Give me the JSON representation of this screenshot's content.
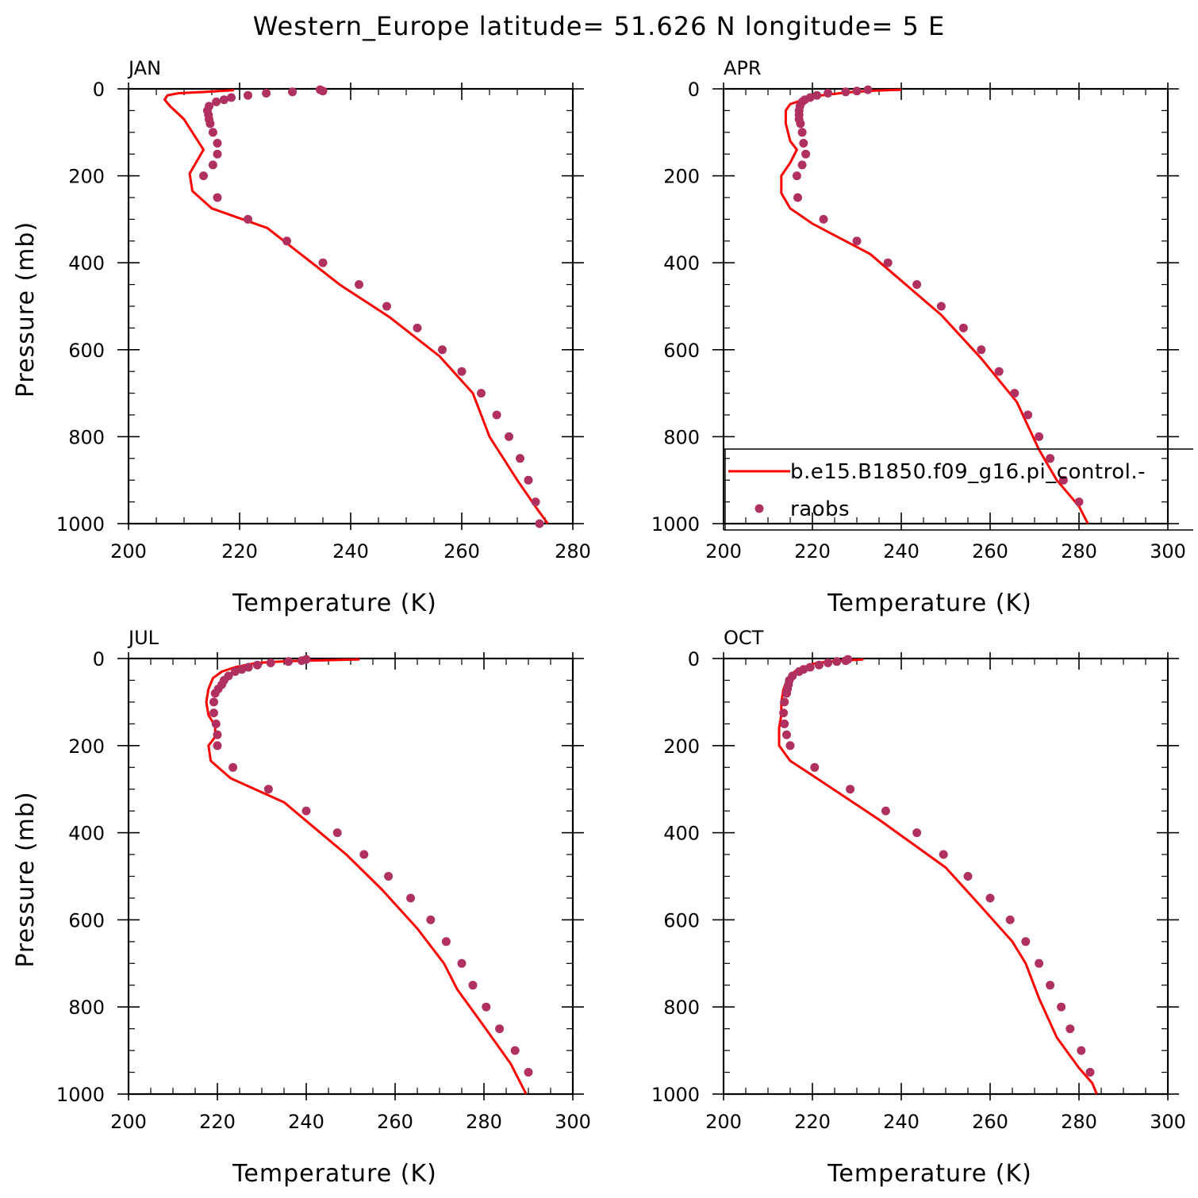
{
  "title": "Western_Europe  latitude= 51.626 N longitude= 5 E",
  "legend": {
    "model_label": "b.e15.B1850.f09_g16.pi_control.-",
    "obs_label": "raobs",
    "placement": "over APR panel, lower-right"
  },
  "colors": {
    "model_line": "#ff0000",
    "obs_points": "#b03060",
    "frame": "#000000",
    "background": "#ffffff"
  },
  "chart_data": [
    {
      "type": "line",
      "panel_label": "JAN",
      "xlabel": "Temperature (K)",
      "ylabel": "Pressure (mb)",
      "xlim": [
        200,
        280
      ],
      "ylim": [
        1000,
        0
      ],
      "xticks": [
        200,
        220,
        240,
        260,
        280
      ],
      "yticks": [
        0,
        200,
        400,
        600,
        800,
        1000
      ],
      "xtick_labels": [
        "200",
        "220",
        "240",
        "260",
        "280"
      ],
      "ytick_labels": [
        "0",
        "200",
        "400",
        "600",
        "800",
        "1000"
      ],
      "series": [
        {
          "name": "b.e15.B1850.f09_g16.pi_control.-",
          "kind": "line",
          "x": [
            219,
            214,
            209,
            207,
            206.5,
            207.5,
            210,
            213.5,
            211,
            211.5,
            215,
            225,
            238,
            247,
            256,
            262,
            265,
            270,
            273.5,
            275.5
          ],
          "y": [
            3,
            7,
            10,
            15,
            25,
            40,
            70,
            140,
            195,
            235,
            275,
            320,
            450,
            525,
            615,
            700,
            800,
            900,
            965,
            1000
          ]
        },
        {
          "name": "raobs",
          "kind": "points",
          "x": [
            234.5,
            235,
            229.5,
            224.8,
            221.5,
            218.5,
            217.2,
            215.8,
            214.5,
            214.2,
            214.4,
            214.5,
            214.7,
            215.2,
            216,
            216,
            215.2,
            213.5,
            216,
            221.5,
            228.5,
            235,
            241.5,
            246.5,
            252,
            256.5,
            260,
            263.5,
            266.3,
            268.5,
            270.5,
            272,
            273.3,
            274
          ],
          "y": [
            2,
            5,
            7,
            10,
            15,
            20,
            25,
            30,
            40,
            50,
            60,
            70,
            80,
            100,
            125,
            150,
            175,
            200,
            250,
            300,
            350,
            400,
            450,
            500,
            550,
            600,
            650,
            700,
            750,
            800,
            850,
            900,
            950,
            1000
          ]
        }
      ]
    },
    {
      "type": "line",
      "panel_label": "APR",
      "xlabel": "Temperature (K)",
      "ylabel": "",
      "xlim": [
        200,
        300
      ],
      "ylim": [
        1000,
        0
      ],
      "xticks": [
        200,
        220,
        240,
        260,
        280,
        300
      ],
      "yticks": [
        0,
        200,
        400,
        600,
        800,
        1000
      ],
      "xtick_labels": [
        "200",
        "220",
        "240",
        "260",
        "280",
        "300"
      ],
      "ytick_labels": [
        "0",
        "200",
        "400",
        "600",
        "800",
        "1000"
      ],
      "series": [
        {
          "name": "b.e15.B1850.f09_g16.pi_control.-",
          "kind": "line",
          "x": [
            240,
            234,
            228,
            222,
            218,
            215,
            214,
            214,
            215,
            216.5,
            215,
            213,
            213,
            215,
            220,
            233,
            249,
            258,
            266,
            271,
            275,
            280,
            282
          ],
          "y": [
            2,
            4,
            8,
            15,
            25,
            35,
            50,
            80,
            120,
            140,
            170,
            200,
            240,
            275,
            310,
            380,
            520,
            620,
            720,
            830,
            900,
            960,
            1000
          ]
        },
        {
          "name": "raobs",
          "kind": "points",
          "x": [
            232.5,
            230,
            227.5,
            223.5,
            221,
            219.5,
            218.3,
            217.7,
            217.2,
            217.0,
            217.0,
            217.0,
            217.3,
            217.7,
            218.0,
            218.5,
            217.7,
            216.5,
            216.7,
            222.5,
            230,
            237,
            243.5,
            249,
            254,
            258,
            262,
            265.5,
            268.5,
            271,
            273.5,
            276.5,
            280
          ],
          "y": [
            2,
            5,
            7,
            10,
            15,
            20,
            25,
            30,
            40,
            50,
            60,
            70,
            80,
            100,
            125,
            150,
            175,
            200,
            250,
            300,
            350,
            400,
            450,
            500,
            550,
            600,
            650,
            700,
            750,
            800,
            850,
            900,
            950
          ]
        }
      ]
    },
    {
      "type": "line",
      "panel_label": "JUL",
      "xlabel": "Temperature (K)",
      "ylabel": "Pressure (mb)",
      "xlim": [
        200,
        300
      ],
      "ylim": [
        1000,
        0
      ],
      "xticks": [
        200,
        220,
        240,
        260,
        280,
        300
      ],
      "yticks": [
        0,
        200,
        400,
        600,
        800,
        1000
      ],
      "xtick_labels": [
        "200",
        "220",
        "240",
        "260",
        "280",
        "300"
      ],
      "ytick_labels": [
        "0",
        "200",
        "400",
        "600",
        "800",
        "1000"
      ],
      "series": [
        {
          "name": "b.e15.B1850.f09_g16.pi_control.-",
          "kind": "line",
          "x": [
            252,
            244,
            236,
            229,
            224,
            221,
            219,
            218,
            217.5,
            218,
            219.5,
            219.5,
            218,
            218.5,
            223,
            235,
            249,
            257,
            265,
            271,
            274,
            279,
            286,
            289.5
          ],
          "y": [
            2,
            4,
            6,
            10,
            20,
            30,
            45,
            70,
            100,
            130,
            155,
            180,
            200,
            235,
            275,
            330,
            450,
            530,
            620,
            700,
            760,
            830,
            930,
            1000
          ]
        },
        {
          "name": "raobs",
          "kind": "points",
          "x": [
            240,
            239,
            236,
            232,
            229,
            227,
            225.5,
            224,
            222.5,
            221.5,
            221,
            220.2,
            219.5,
            219.2,
            219.2,
            219.7,
            220,
            220,
            223.5,
            231.5,
            240,
            247,
            253,
            258.5,
            263.5,
            268,
            271.5,
            275,
            277.5,
            280.5,
            283.5,
            287,
            290
          ],
          "y": [
            2,
            5,
            7,
            10,
            15,
            20,
            25,
            30,
            40,
            50,
            60,
            70,
            80,
            100,
            125,
            150,
            175,
            200,
            250,
            300,
            350,
            400,
            450,
            500,
            550,
            600,
            650,
            700,
            750,
            800,
            850,
            900,
            950
          ]
        }
      ]
    },
    {
      "type": "line",
      "panel_label": "OCT",
      "xlabel": "Temperature (K)",
      "ylabel": "",
      "xlim": [
        200,
        300
      ],
      "ylim": [
        1000,
        0
      ],
      "xticks": [
        200,
        220,
        240,
        260,
        280,
        300
      ],
      "yticks": [
        0,
        200,
        400,
        600,
        800,
        1000
      ],
      "xtick_labels": [
        "200",
        "220",
        "240",
        "260",
        "280",
        "300"
      ],
      "ytick_labels": [
        "0",
        "200",
        "400",
        "600",
        "800",
        "1000"
      ],
      "series": [
        {
          "name": "b.e15.B1850.f09_g16.pi_control.-",
          "kind": "line",
          "x": [
            231.5,
            226,
            221,
            218,
            216,
            214.5,
            213.5,
            213,
            213,
            212.5,
            212.5,
            215,
            221,
            235,
            250,
            258,
            265,
            268,
            271,
            275,
            280,
            283,
            284
          ],
          "y": [
            2,
            5,
            10,
            20,
            30,
            45,
            70,
            100,
            130,
            160,
            200,
            235,
            275,
            370,
            480,
            570,
            650,
            700,
            780,
            870,
            940,
            975,
            1000
          ]
        },
        {
          "name": "raobs",
          "kind": "points",
          "x": [
            228,
            227.5,
            225.5,
            223.5,
            221.5,
            219.5,
            218.0,
            217.0,
            215.5,
            214.8,
            214.6,
            214.4,
            214.2,
            213.7,
            213.5,
            213.7,
            214.2,
            215,
            220.5,
            228.5,
            236.5,
            243.5,
            249.5,
            255,
            260,
            264.5,
            268,
            271,
            273.5,
            276,
            278,
            280.5,
            282.5
          ],
          "y": [
            2,
            5,
            7,
            10,
            15,
            20,
            25,
            30,
            40,
            50,
            60,
            70,
            80,
            100,
            125,
            150,
            175,
            200,
            250,
            300,
            350,
            400,
            450,
            500,
            550,
            600,
            650,
            700,
            750,
            800,
            850,
            900,
            950
          ]
        }
      ]
    }
  ]
}
